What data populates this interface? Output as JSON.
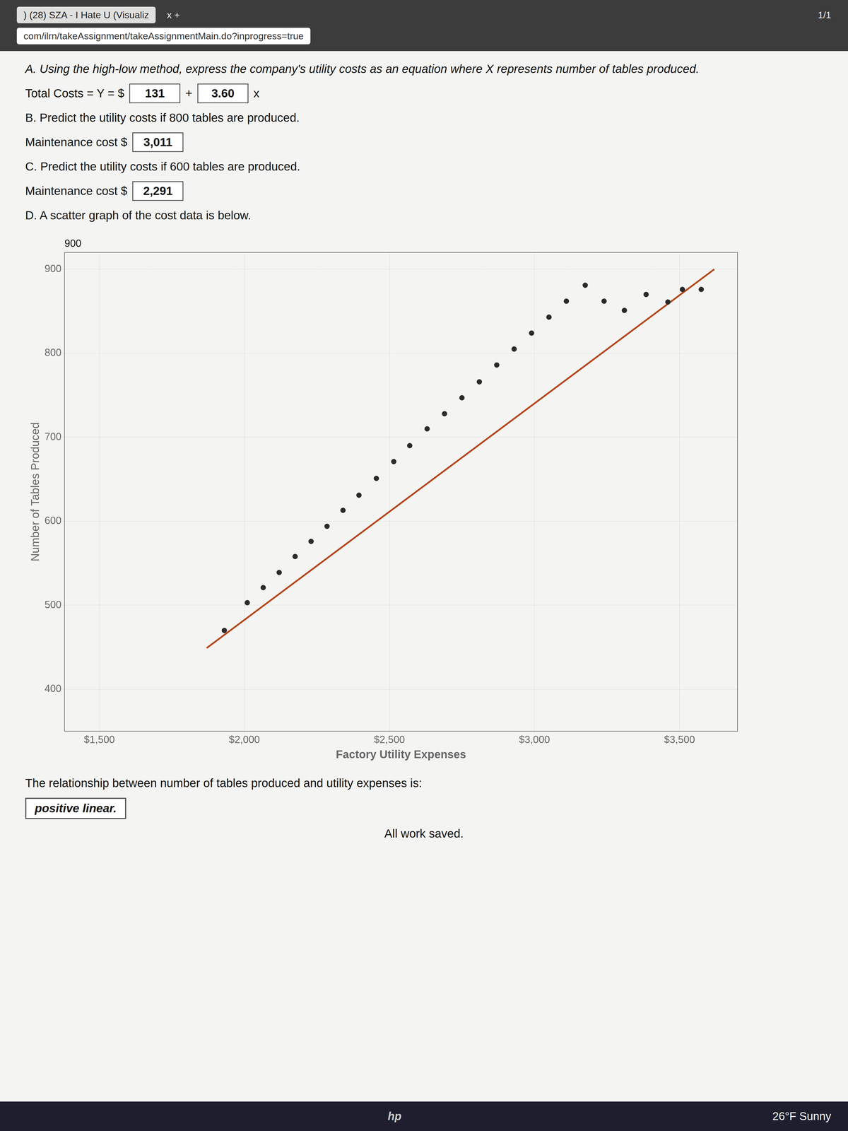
{
  "chart_data": {
    "type": "scatter",
    "xlabel": "Factory Utility Expenses",
    "ylabel": "Number of Tables Produced",
    "series": [
      {
        "type": "scatter",
        "color": "#2a2a2a",
        "x": [
          1931,
          2010,
          2065,
          2120,
          2175,
          2230,
          2285,
          2340,
          2395,
          2455,
          2515,
          2570,
          2630,
          2690,
          2750,
          2810,
          2870,
          2930,
          2990,
          3050,
          3110,
          3175,
          3240,
          3310,
          3385,
          3460,
          3510,
          3575
        ],
        "values": [
          470,
          503,
          521,
          539,
          558,
          576,
          594,
          613,
          631,
          651,
          671,
          690,
          710,
          728,
          747,
          766,
          786,
          805,
          824,
          843,
          862,
          881,
          862,
          851,
          870,
          861,
          876,
          876
        ]
      },
      {
        "type": "line",
        "color": "#b5451b",
        "x": [
          1870,
          3620
        ],
        "values": [
          449,
          900
        ]
      }
    ],
    "xlim": [
      1380,
      3700
    ],
    "xticks": [
      {
        "value": 1500,
        "label": "$1,500"
      },
      {
        "value": 2000,
        "label": "$2,000"
      },
      {
        "value": 2500,
        "label": "$2,500"
      },
      {
        "value": 3000,
        "label": "$3,000"
      },
      {
        "value": 3500,
        "label": "$3,500"
      }
    ],
    "ylim": [
      350,
      920
    ],
    "yticks": [
      400,
      500,
      600,
      700,
      800,
      900
    ],
    "grid": true,
    "annotations": [
      "A. Using the high-low method, express the company's utility costs as an equation where X represents number of tables produced.",
      "Total Costs = Y = $",
      "131",
      "+",
      "3.60",
      "x",
      "B. Predict the utility costs if 800 tables are produced.",
      "Maintenance cost $",
      "3,011",
      "C. Predict the utility costs if 600 tables are produced.",
      "Maintenance cost $",
      "2,291",
      "D. A scatter graph of the cost data is below.",
      "900",
      "The relationship between number of tables produced and utility expenses is:",
      "positive linear.",
      "All work saved.",
      ") (28) SZA - I Hate U (Visualiz",
      "x  +",
      "1/1",
      "com/ilrn/takeAssignment/takeAssignmentMain.do?inprogress=true",
      "26°F  Sunny",
      "hp"
    ]
  }
}
